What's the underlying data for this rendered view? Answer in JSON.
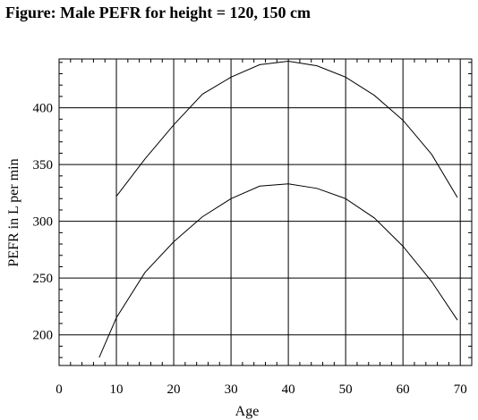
{
  "title": "Figure: Male PEFR for height = 120, 150 cm",
  "chart_data": {
    "type": "line",
    "title": "Figure: Male PEFR for height = 120, 150 cm",
    "xlabel": "Age",
    "ylabel": "PEFR in L per min",
    "xlim": [
      0,
      72
    ],
    "ylim": [
      173,
      443
    ],
    "x_ticks": [
      0,
      10,
      20,
      30,
      40,
      50,
      60,
      70
    ],
    "y_ticks": [
      200,
      250,
      300,
      350,
      400
    ],
    "grid": true,
    "series": [
      {
        "x": [
          10,
          15,
          20,
          25,
          30,
          35,
          40,
          45,
          50,
          55,
          60,
          65,
          69.5
        ],
        "y": [
          322,
          355,
          385,
          412,
          427,
          438,
          441,
          437,
          427,
          411,
          389,
          359,
          321
        ]
      },
      {
        "x": [
          7,
          10,
          15,
          20,
          25,
          30,
          35,
          40,
          45,
          50,
          55,
          60,
          65,
          69.5
        ],
        "y": [
          180,
          215,
          255,
          282,
          304,
          320,
          331,
          333,
          329,
          320,
          303,
          278,
          247,
          213
        ]
      }
    ]
  }
}
